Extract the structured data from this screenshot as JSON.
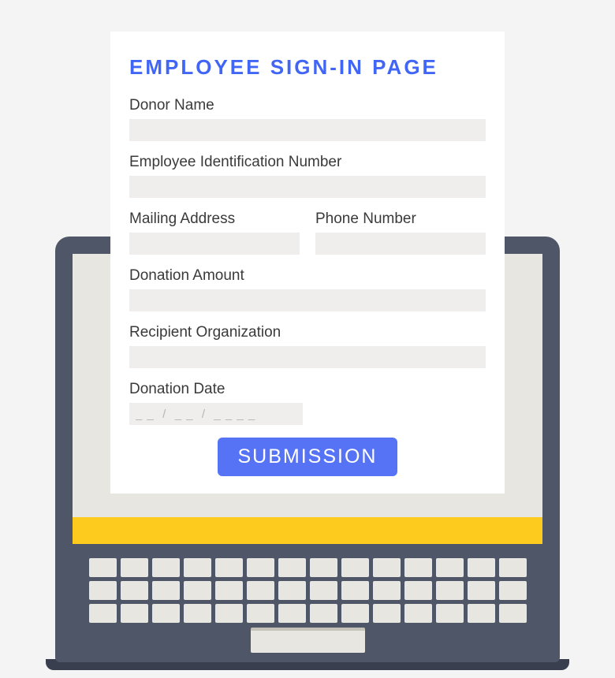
{
  "form": {
    "title": "EMPLOYEE SIGN-IN PAGE",
    "fields": {
      "donor_name": {
        "label": "Donor Name",
        "value": ""
      },
      "employee_id": {
        "label": "Employee Identification Number",
        "value": ""
      },
      "mailing_address": {
        "label": "Mailing Address",
        "value": ""
      },
      "phone_number": {
        "label": "Phone Number",
        "value": ""
      },
      "donation_amount": {
        "label": "Donation Amount",
        "value": ""
      },
      "recipient_org": {
        "label": "Recipient Organization",
        "value": ""
      },
      "donation_date": {
        "label": "Donation Date",
        "value": "",
        "placeholder": "_ _  /  _ _  /  _ _ _ _"
      }
    },
    "submit_label": "SUBMISSION"
  },
  "colors": {
    "page_bg": "#f4f4f4",
    "card_bg": "#ffffff",
    "title": "#4166f6",
    "label": "#3a3a3a",
    "input_bg": "#efeeec",
    "placeholder": "#b8b6b0",
    "button_bg": "#5673f6",
    "button_text": "#ffffff",
    "laptop_body": "#4e5668",
    "laptop_shadow": "#393f4f",
    "screen_inner": "#e8e6e0",
    "accent_bar": "#fccb1d",
    "key": "#e8e6e0"
  },
  "laptop": {
    "key_rows": 3,
    "keys_per_row": 14
  }
}
